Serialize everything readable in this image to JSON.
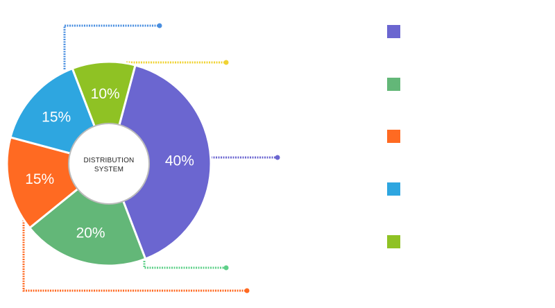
{
  "chart_data": {
    "type": "pie",
    "variant": "donut",
    "center_label": [
      "DISTRIBUTION",
      "SYSTEM"
    ],
    "slices": [
      {
        "label": "40%",
        "value": 40,
        "color": "#6b66d0"
      },
      {
        "label": "20%",
        "value": 20,
        "color": "#63b778"
      },
      {
        "label": "15%",
        "value": 15,
        "color": "#ff6a22"
      },
      {
        "label": "15%",
        "value": 15,
        "color": "#2ea6e0"
      },
      {
        "label": "10%",
        "value": 10,
        "color": "#8fc224"
      }
    ],
    "legend_colors": [
      "#6b66d0",
      "#63b778",
      "#ff6a22",
      "#2ea6e0",
      "#8fc224"
    ],
    "legend_position": "right",
    "connector_colors": [
      "#6b66d0",
      "#5fd089",
      "#ff6a22",
      "#4a8fe0",
      "#f0d334"
    ]
  }
}
